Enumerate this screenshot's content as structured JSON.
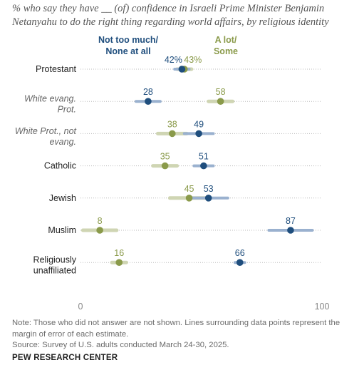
{
  "subtitle": "% who say they have __ (of) confidence in Israeli Prime Minister Benjamin Netanyahu to do the right thing regarding world affairs, by religious identity",
  "note": "Note: Those who did not answer are not shown. Lines surrounding data points represent the margin of error of each estimate.",
  "source": "Source: Survey of U.S. adults conducted March 24-30, 2025.",
  "brand": "PEW RESEARCH CENTER",
  "chart_data": {
    "type": "dot",
    "xlim": [
      0,
      100
    ],
    "x_ticks": [
      "0",
      "100"
    ],
    "grid": false,
    "legend_placement": "top-center",
    "colors": {
      "not_too_much": "#1f4e7d",
      "a_lot": "#8a9a4a"
    },
    "series": [
      {
        "name": "Not too much/ None at all",
        "key": "not_too_much",
        "values": [
          42,
          28,
          49,
          51,
          53,
          87,
          66
        ],
        "labels": [
          "42%",
          "28",
          "49",
          "51",
          "53",
          "87",
          "66"
        ],
        "moe": [
          3,
          5,
          6,
          4,
          8,
          9,
          2
        ]
      },
      {
        "name": "A lot/ Some",
        "key": "a_lot",
        "values": [
          43,
          58,
          38,
          35,
          45,
          8,
          16
        ],
        "labels": [
          "43%",
          "58",
          "38",
          "35",
          "45",
          "8",
          "16"
        ],
        "moe": [
          3,
          5,
          6,
          5,
          8,
          7,
          3
        ]
      }
    ],
    "categories": [
      {
        "label": [
          "Protestant"
        ],
        "italic": false
      },
      {
        "label": [
          "White evang.",
          "Prot."
        ],
        "italic": true
      },
      {
        "label": [
          "White Prot., not",
          "evang."
        ],
        "italic": true
      },
      {
        "label": [
          "Catholic"
        ],
        "italic": false
      },
      {
        "label": [
          "Jewish"
        ],
        "italic": false
      },
      {
        "label": [
          "Muslim"
        ],
        "italic": false
      },
      {
        "label": [
          "Religiously",
          "unaffiliated"
        ],
        "italic": false
      }
    ]
  }
}
